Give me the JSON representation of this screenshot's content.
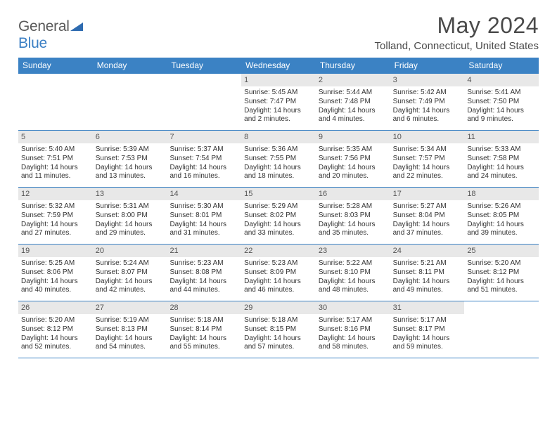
{
  "logo": {
    "text_general": "General",
    "text_blue": "Blue"
  },
  "header": {
    "month_title": "May 2024",
    "location": "Tolland, Connecticut, United States"
  },
  "colors": {
    "header_bar": "#3b82c4",
    "day_num_bg": "#e8e8e8",
    "logo_blue": "#3b7fc4",
    "text_dark": "#4a4a4a"
  },
  "days_of_week": [
    "Sunday",
    "Monday",
    "Tuesday",
    "Wednesday",
    "Thursday",
    "Friday",
    "Saturday"
  ],
  "weeks": [
    [
      null,
      null,
      null,
      {
        "n": "1",
        "sr": "Sunrise: 5:45 AM",
        "ss": "Sunset: 7:47 PM",
        "dl": "Daylight: 14 hours and 2 minutes."
      },
      {
        "n": "2",
        "sr": "Sunrise: 5:44 AM",
        "ss": "Sunset: 7:48 PM",
        "dl": "Daylight: 14 hours and 4 minutes."
      },
      {
        "n": "3",
        "sr": "Sunrise: 5:42 AM",
        "ss": "Sunset: 7:49 PM",
        "dl": "Daylight: 14 hours and 6 minutes."
      },
      {
        "n": "4",
        "sr": "Sunrise: 5:41 AM",
        "ss": "Sunset: 7:50 PM",
        "dl": "Daylight: 14 hours and 9 minutes."
      }
    ],
    [
      {
        "n": "5",
        "sr": "Sunrise: 5:40 AM",
        "ss": "Sunset: 7:51 PM",
        "dl": "Daylight: 14 hours and 11 minutes."
      },
      {
        "n": "6",
        "sr": "Sunrise: 5:39 AM",
        "ss": "Sunset: 7:53 PM",
        "dl": "Daylight: 14 hours and 13 minutes."
      },
      {
        "n": "7",
        "sr": "Sunrise: 5:37 AM",
        "ss": "Sunset: 7:54 PM",
        "dl": "Daylight: 14 hours and 16 minutes."
      },
      {
        "n": "8",
        "sr": "Sunrise: 5:36 AM",
        "ss": "Sunset: 7:55 PM",
        "dl": "Daylight: 14 hours and 18 minutes."
      },
      {
        "n": "9",
        "sr": "Sunrise: 5:35 AM",
        "ss": "Sunset: 7:56 PM",
        "dl": "Daylight: 14 hours and 20 minutes."
      },
      {
        "n": "10",
        "sr": "Sunrise: 5:34 AM",
        "ss": "Sunset: 7:57 PM",
        "dl": "Daylight: 14 hours and 22 minutes."
      },
      {
        "n": "11",
        "sr": "Sunrise: 5:33 AM",
        "ss": "Sunset: 7:58 PM",
        "dl": "Daylight: 14 hours and 24 minutes."
      }
    ],
    [
      {
        "n": "12",
        "sr": "Sunrise: 5:32 AM",
        "ss": "Sunset: 7:59 PM",
        "dl": "Daylight: 14 hours and 27 minutes."
      },
      {
        "n": "13",
        "sr": "Sunrise: 5:31 AM",
        "ss": "Sunset: 8:00 PM",
        "dl": "Daylight: 14 hours and 29 minutes."
      },
      {
        "n": "14",
        "sr": "Sunrise: 5:30 AM",
        "ss": "Sunset: 8:01 PM",
        "dl": "Daylight: 14 hours and 31 minutes."
      },
      {
        "n": "15",
        "sr": "Sunrise: 5:29 AM",
        "ss": "Sunset: 8:02 PM",
        "dl": "Daylight: 14 hours and 33 minutes."
      },
      {
        "n": "16",
        "sr": "Sunrise: 5:28 AM",
        "ss": "Sunset: 8:03 PM",
        "dl": "Daylight: 14 hours and 35 minutes."
      },
      {
        "n": "17",
        "sr": "Sunrise: 5:27 AM",
        "ss": "Sunset: 8:04 PM",
        "dl": "Daylight: 14 hours and 37 minutes."
      },
      {
        "n": "18",
        "sr": "Sunrise: 5:26 AM",
        "ss": "Sunset: 8:05 PM",
        "dl": "Daylight: 14 hours and 39 minutes."
      }
    ],
    [
      {
        "n": "19",
        "sr": "Sunrise: 5:25 AM",
        "ss": "Sunset: 8:06 PM",
        "dl": "Daylight: 14 hours and 40 minutes."
      },
      {
        "n": "20",
        "sr": "Sunrise: 5:24 AM",
        "ss": "Sunset: 8:07 PM",
        "dl": "Daylight: 14 hours and 42 minutes."
      },
      {
        "n": "21",
        "sr": "Sunrise: 5:23 AM",
        "ss": "Sunset: 8:08 PM",
        "dl": "Daylight: 14 hours and 44 minutes."
      },
      {
        "n": "22",
        "sr": "Sunrise: 5:23 AM",
        "ss": "Sunset: 8:09 PM",
        "dl": "Daylight: 14 hours and 46 minutes."
      },
      {
        "n": "23",
        "sr": "Sunrise: 5:22 AM",
        "ss": "Sunset: 8:10 PM",
        "dl": "Daylight: 14 hours and 48 minutes."
      },
      {
        "n": "24",
        "sr": "Sunrise: 5:21 AM",
        "ss": "Sunset: 8:11 PM",
        "dl": "Daylight: 14 hours and 49 minutes."
      },
      {
        "n": "25",
        "sr": "Sunrise: 5:20 AM",
        "ss": "Sunset: 8:12 PM",
        "dl": "Daylight: 14 hours and 51 minutes."
      }
    ],
    [
      {
        "n": "26",
        "sr": "Sunrise: 5:20 AM",
        "ss": "Sunset: 8:12 PM",
        "dl": "Daylight: 14 hours and 52 minutes."
      },
      {
        "n": "27",
        "sr": "Sunrise: 5:19 AM",
        "ss": "Sunset: 8:13 PM",
        "dl": "Daylight: 14 hours and 54 minutes."
      },
      {
        "n": "28",
        "sr": "Sunrise: 5:18 AM",
        "ss": "Sunset: 8:14 PM",
        "dl": "Daylight: 14 hours and 55 minutes."
      },
      {
        "n": "29",
        "sr": "Sunrise: 5:18 AM",
        "ss": "Sunset: 8:15 PM",
        "dl": "Daylight: 14 hours and 57 minutes."
      },
      {
        "n": "30",
        "sr": "Sunrise: 5:17 AM",
        "ss": "Sunset: 8:16 PM",
        "dl": "Daylight: 14 hours and 58 minutes."
      },
      {
        "n": "31",
        "sr": "Sunrise: 5:17 AM",
        "ss": "Sunset: 8:17 PM",
        "dl": "Daylight: 14 hours and 59 minutes."
      },
      null
    ]
  ]
}
